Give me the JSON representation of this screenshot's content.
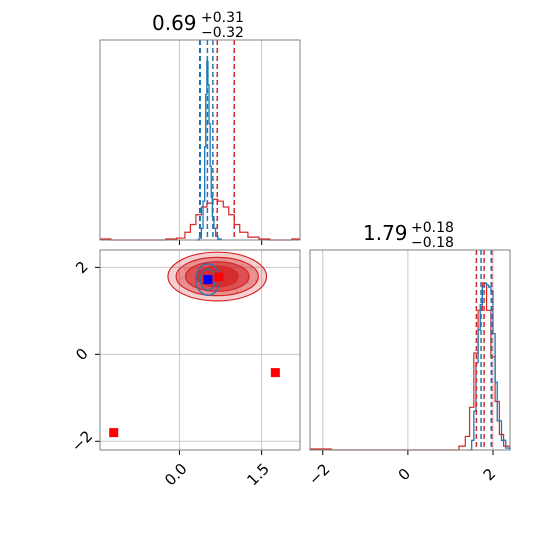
{
  "chart_data": {
    "type": "corner",
    "colors": {
      "posterior_a": "#d62728",
      "posterior_b": "#1f77b4",
      "marker_red": "#ff0000",
      "marker_blue": "#0000ff",
      "grid": "#c8c8c8",
      "frame": "#808080"
    },
    "panels": [
      {
        "name": "hist-param-1",
        "kind": "histogram",
        "title": {
          "value": "0.69",
          "plus": "+0.31",
          "minus": "−0.32"
        },
        "xlim": [
          -1.45,
          2.2
        ],
        "xticks": [
          0.0,
          1.5
        ],
        "quantiles_red": [
          0.37,
          0.69,
          1.0
        ],
        "quantiles_blue": [
          0.38,
          0.51,
          0.61
        ],
        "red_hist": {
          "edges": [
            -1.45,
            -1.25,
            -1.05,
            -0.85,
            -0.65,
            -0.45,
            -0.25,
            -0.05,
            0.1,
            0.2,
            0.3,
            0.4,
            0.5,
            0.6,
            0.7,
            0.8,
            0.9,
            1.0,
            1.1,
            1.25,
            1.45,
            1.65,
            1.85,
            2.05,
            2.2
          ],
          "heights": [
            0.005,
            0.0,
            0.0,
            0.0,
            0.0,
            0.0,
            0.005,
            0.01,
            0.04,
            0.08,
            0.13,
            0.17,
            0.19,
            0.21,
            0.2,
            0.17,
            0.13,
            0.08,
            0.04,
            0.015,
            0.005,
            0.0,
            0.0,
            0.005
          ]
        },
        "blue_hist": {
          "x": [
            0.3,
            0.36,
            0.4,
            0.43,
            0.46,
            0.48,
            0.5,
            0.52,
            0.54,
            0.56,
            0.58,
            0.6,
            0.63,
            0.66,
            0.7,
            0.76
          ],
          "y": [
            0.0,
            0.01,
            0.06,
            0.2,
            0.48,
            0.75,
            0.92,
            0.8,
            0.6,
            0.38,
            0.22,
            0.12,
            0.06,
            0.02,
            0.005,
            0.0
          ]
        }
      },
      {
        "name": "scatter-param-1-vs-2",
        "kind": "contour",
        "xlim": [
          -1.45,
          2.2
        ],
        "ylim": [
          -2.2,
          2.4
        ],
        "xticks": [
          0.0,
          1.5
        ],
        "yticks": [
          -2,
          0,
          2
        ],
        "xtick_labels": [
          "0.0",
          "1.5"
        ],
        "ytick_labels": [
          "−2",
          "0",
          "2"
        ],
        "red_contours": [
          {
            "cx": 0.69,
            "cy": 1.79,
            "rx": 0.9,
            "ry": 0.56,
            "alpha": 0.22
          },
          {
            "cx": 0.69,
            "cy": 1.79,
            "rx": 0.75,
            "ry": 0.44,
            "alpha": 0.38
          },
          {
            "cx": 0.69,
            "cy": 1.79,
            "rx": 0.58,
            "ry": 0.34,
            "alpha": 0.6
          },
          {
            "cx": 0.69,
            "cy": 1.79,
            "rx": 0.38,
            "ry": 0.24,
            "alpha": 0.85
          }
        ],
        "blue_contours": [
          {
            "cx": 0.52,
            "cy": 1.72,
            "rx": 0.22,
            "ry": 0.36
          },
          {
            "cx": 0.52,
            "cy": 1.72,
            "rx": 0.14,
            "ry": 0.24
          }
        ],
        "red_markers": [
          {
            "x": -1.2,
            "y": -1.8
          },
          {
            "x": 1.75,
            "y": -0.42
          },
          {
            "x": 0.72,
            "y": 1.78
          }
        ],
        "blue_markers": [
          {
            "x": 0.52,
            "y": 1.72
          }
        ]
      },
      {
        "name": "hist-param-2",
        "kind": "histogram",
        "title": {
          "value": "1.79",
          "plus": "+0.18",
          "minus": "−0.18"
        },
        "xlim": [
          -2.3,
          2.4
        ],
        "xticks": [
          -2,
          0,
          2
        ],
        "xtick_labels": [
          "−2",
          "0",
          "2"
        ],
        "quantiles_red": [
          1.61,
          1.79,
          1.97
        ],
        "quantiles_blue": [
          1.72,
          1.96
        ],
        "red_hist": {
          "edges": [
            -2.3,
            -1.8,
            -1.3,
            -0.8,
            -0.3,
            0.2,
            0.7,
            1.2,
            1.35,
            1.45,
            1.55,
            1.65,
            1.75,
            1.85,
            1.95,
            2.05,
            2.15,
            2.25,
            2.4
          ],
          "heights": [
            0.005,
            0.0,
            0.0,
            0.0,
            0.0,
            0.0,
            0.0,
            0.02,
            0.07,
            0.22,
            0.5,
            0.72,
            0.86,
            0.72,
            0.48,
            0.25,
            0.08,
            0.02
          ]
        },
        "blue_hist": {
          "x": [
            1.4,
            1.5,
            1.55,
            1.6,
            1.65,
            1.7,
            1.75,
            1.8,
            1.85,
            1.9,
            1.95,
            2.0,
            2.05,
            2.1,
            2.2,
            2.3,
            2.4
          ],
          "y": [
            0.0,
            0.05,
            0.2,
            0.45,
            0.62,
            0.75,
            0.84,
            0.86,
            0.85,
            0.84,
            0.82,
            0.6,
            0.35,
            0.15,
            0.05,
            0.01,
            0.0
          ]
        }
      }
    ]
  }
}
